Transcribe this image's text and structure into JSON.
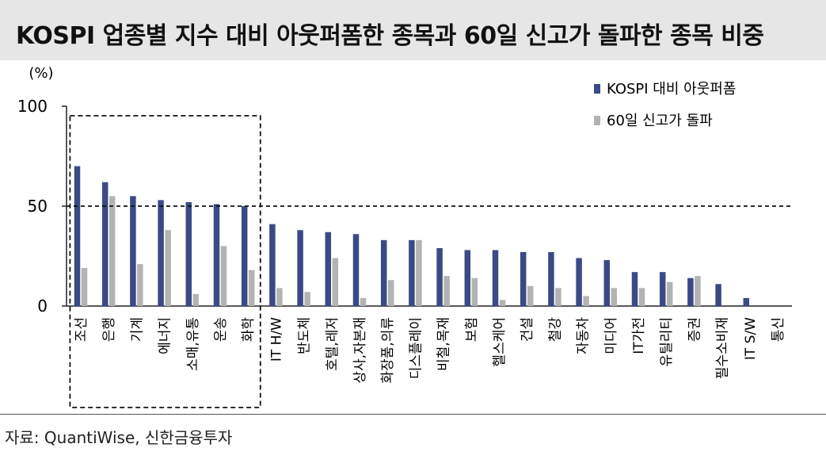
{
  "title": "KOSPI 업종별 지수 대비 아웃퍼폼한 종목과 60일 신고가 돌파한 종목 비중",
  "source": "자료: QuantiWise, 신한금융투자",
  "colors": {
    "series1": "#3b4a86",
    "series2": "#b3b3b3",
    "title_bg": "#e6e6e6"
  },
  "chart_data": {
    "type": "bar",
    "ylabel": "(%)",
    "ylim": [
      0,
      100
    ],
    "yticks": [
      0,
      50,
      100
    ],
    "reference_line": 50,
    "legend_position": "top-right",
    "categories": [
      "조선",
      "은행",
      "기계",
      "에너지",
      "소매,유통",
      "운송",
      "화학",
      "IT H/W",
      "반도체",
      "호텔,레저",
      "상사,자본재",
      "화장품,의류",
      "디스플레이",
      "비철,목재",
      "보험",
      "헬스케어",
      "건설",
      "철강",
      "자동차",
      "미디어",
      "IT가전",
      "유틸리티",
      "증권",
      "필수소비재",
      "IT S/W",
      "통신"
    ],
    "series": [
      {
        "name": "KOSPI 대비 아웃퍼폼",
        "values": [
          70,
          62,
          55,
          53,
          52,
          51,
          50,
          41,
          38,
          37,
          36,
          33,
          33,
          29,
          28,
          28,
          27,
          27,
          24,
          23,
          17,
          17,
          14,
          11,
          4,
          0
        ]
      },
      {
        "name": "60일 신고가 돌파",
        "values": [
          19,
          55,
          21,
          38,
          6,
          30,
          18,
          9,
          7,
          24,
          4,
          13,
          33,
          15,
          14,
          3,
          10,
          9,
          5,
          9,
          9,
          12,
          15,
          0,
          0,
          0
        ]
      }
    ],
    "highlight_box_categories": [
      "조선",
      "은행",
      "기계",
      "에너지",
      "소매,유통",
      "운송",
      "화학"
    ]
  }
}
